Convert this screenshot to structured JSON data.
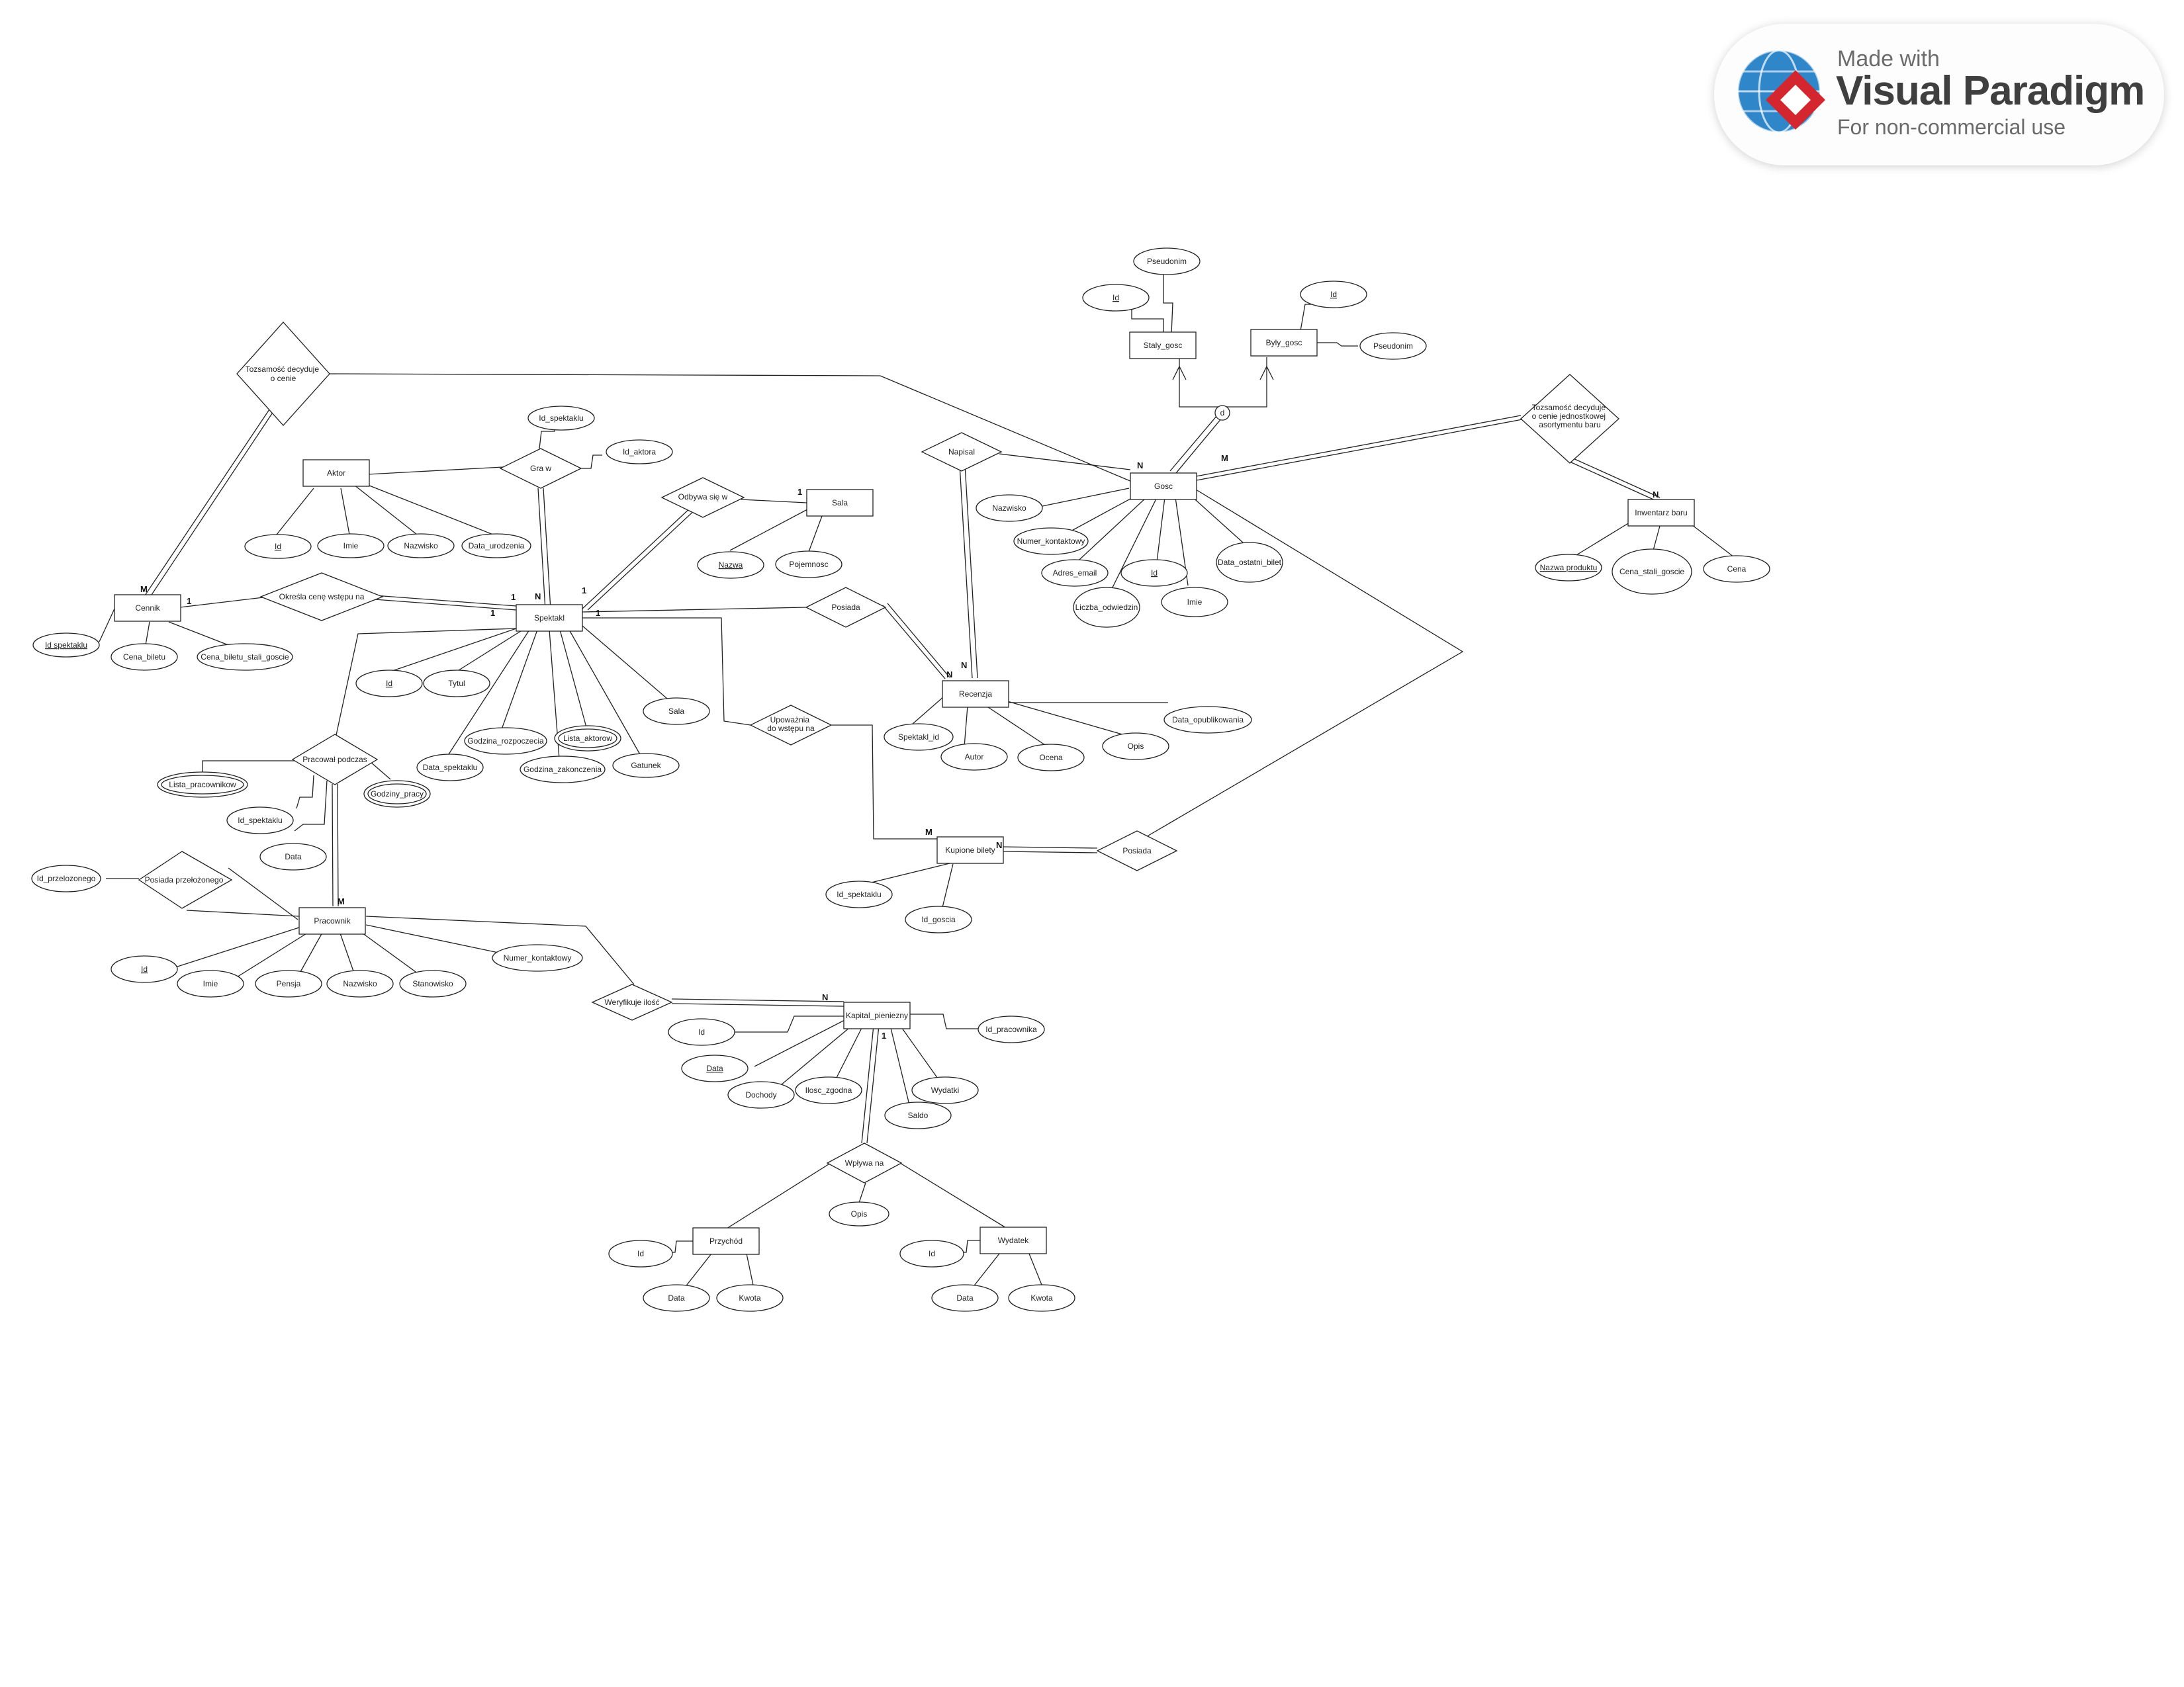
{
  "watermark": {
    "line1": "Made with",
    "brand": "Visual Paradigm",
    "line3": "For non-commercial use"
  },
  "entities": {
    "aktor": "Aktor",
    "sala": "Sala",
    "gosc": "Gosc",
    "staly_gosc": "Staly_gosc",
    "byly_gosc": "Byly_gosc",
    "inwentarz": "Inwentarz baru",
    "cennik": "Cennik",
    "spektakl": "Spektakl",
    "recenzja": "Recenzja",
    "kupione": "Kupione bilety",
    "pracownik": "Pracownik",
    "kapital": "Kapital_pieniezny",
    "przychod": "Przychód",
    "wydatek": "Wydatek"
  },
  "relationships": {
    "tozsamosc_cena": "Tozsamość decyduje o cenie",
    "gra_w": "Gra w",
    "odbywa": "Odbywa się w",
    "napisal": "Napisal",
    "tozsamosc_bar": "Tozsamość decyduje o cenie jednostkowej asortymentu baru",
    "okresla": "Określa cenę wstępu na",
    "posiada_rec": "Posiada",
    "upowaznia": "Upoważnia do wstępu na",
    "pracowal": "Pracował podczas",
    "posiada_bil": "Posiada",
    "posiada_prz": "Posiada przełożonego",
    "weryfikuje": "Weryfikuje ilość",
    "wplywa": "Wpływa na",
    "d": "d"
  },
  "attributes": {
    "staly_id": "Id",
    "staly_pseudonim": "Pseudonim",
    "byly_id": "Id",
    "byly_pseudonim": "Pseudonim",
    "gra_id_spektaklu": "Id_spektaklu",
    "gra_id_aktora": "Id_aktora",
    "aktor_id": "Id",
    "aktor_imie": "Imie",
    "aktor_nazwisko": "Nazwisko",
    "aktor_data": "Data_urodzenia",
    "sala_nazwa": "Nazwa",
    "sala_pojemnosc": "Pojemnosc",
    "gosc_nazwisko": "Nazwisko",
    "gosc_numer": "Numer_kontaktowy",
    "gosc_adres": "Adres_email",
    "gosc_id": "Id",
    "gosc_liczba": "Liczba_odwiedzin",
    "gosc_imie": "Imie",
    "gosc_data": "Data_ostatni_bilet",
    "inw_nazwa": "Nazwa produktu",
    "inw_cena_stali": "Cena_stali_goscie",
    "inw_cena": "Cena",
    "cennik_id": "Id spektaklu",
    "cennik_cena": "Cena_biletu",
    "cennik_cena_stali": "Cena_biletu_stali_goscie",
    "spek_id": "Id",
    "spek_tytul": "Tytul",
    "spek_data": "Data_spektaklu",
    "spek_godz_roz": "Godzina_rozpoczecia",
    "spek_godz_zak": "Godzina_zakonczenia",
    "spek_lista": "Lista_aktorow",
    "spek_gatunek": "Gatunek",
    "spek_sala": "Sala",
    "rec_spektakl_id": "Spektakl_id",
    "rec_autor": "Autor",
    "rec_ocena": "Ocena",
    "rec_opis": "Opis",
    "rec_data": "Data_opublikowania",
    "kup_id_spek": "Id_spektaklu",
    "kup_id_goscia": "Id_goscia",
    "prac_lista": "Lista_pracownikow",
    "prac_id_spek": "Id_spektaklu",
    "prac_data": "Data",
    "prac_godziny": "Godziny_pracy",
    "przel_id": "Id_przelozonego",
    "pr_id": "Id",
    "pr_imie": "Imie",
    "pr_pensja": "Pensja",
    "pr_nazwisko": "Nazwisko",
    "pr_stanowisko": "Stanowisko",
    "pr_numer": "Numer_kontaktowy",
    "kap_id": "Id",
    "kap_data": "Data",
    "kap_dochody": "Dochody",
    "kap_ilosc": "Ilosc_zgodna",
    "kap_saldo": "Saldo",
    "kap_wydatki": "Wydatki",
    "kap_id_prac": "Id_pracownika",
    "wpl_opis": "Opis",
    "przy_id": "Id",
    "przy_data": "Data",
    "przy_kwota": "Kwota",
    "wyd_id": "Id",
    "wyd_data": "Data",
    "wyd_kwota": "Kwota"
  },
  "cardinalities": {
    "c1": "N",
    "c2": "M",
    "c3": "N",
    "c4": "M",
    "c5": "1",
    "c6": "N",
    "c7": "1",
    "c8": "1",
    "c9": "1",
    "c10": "1",
    "c11": "N",
    "c12": "N",
    "c13": "M",
    "c14": "N",
    "c15": "M",
    "c16": "N",
    "c17": "1",
    "c18": "1"
  }
}
